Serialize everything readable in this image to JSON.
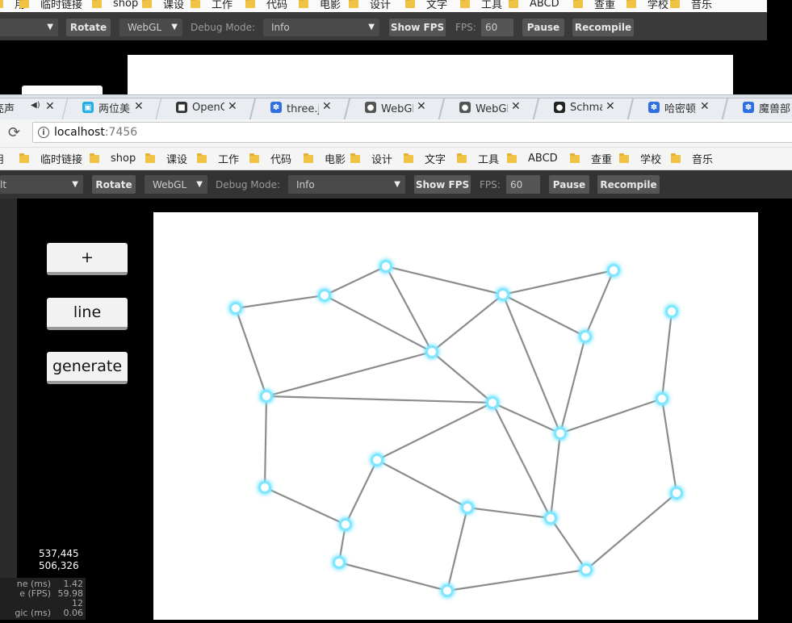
{
  "back_window": {
    "bookmarks": [
      "用",
      "临时链接",
      "shop",
      "课设",
      "工作",
      "代码",
      "电影",
      "设计",
      "文字",
      "工具",
      "ABCD",
      "查重",
      "学校",
      "音乐"
    ],
    "toolbar": {
      "select_value": "",
      "rotate": "Rotate",
      "webgl": "WebGL",
      "debug_label": "Debug Mode:",
      "debug_value": "Info",
      "show_fps": "Show FPS",
      "fps_label": "FPS:",
      "fps_value": "60",
      "pause": "Pause",
      "recompile": "Recompile"
    }
  },
  "tabs": [
    {
      "title": "亮声",
      "icon": "speaker-icon",
      "color": "#888888"
    },
    {
      "title": "两位美女翻",
      "icon": "bilibili-icon",
      "color": "#23ade5"
    },
    {
      "title": "OpenGL -",
      "icon": "book-icon",
      "color": "#333333"
    },
    {
      "title": "three.js_百",
      "icon": "baidu-paw-icon",
      "color": "#2f6fe0"
    },
    {
      "title": "WebGL中",
      "icon": "penguin-icon",
      "color": "#555555"
    },
    {
      "title": "WebGL中",
      "icon": "penguin-icon",
      "color": "#555555"
    },
    {
      "title": "Schmallts",
      "icon": "github-icon",
      "color": "#222222"
    },
    {
      "title": "哈密顿回路",
      "icon": "baidu-paw-icon",
      "color": "#2f6fe0"
    },
    {
      "title": "魔兽部落旗",
      "icon": "baidu-paw-icon",
      "color": "#2f6fe0"
    }
  ],
  "address": {
    "host": "localhost",
    "port": ":7456"
  },
  "bookmarks": [
    "用",
    "临时链接",
    "shop",
    "课设",
    "工作",
    "代码",
    "电影",
    "设计",
    "文字",
    "工具",
    "ABCD",
    "查重",
    "学校",
    "音乐"
  ],
  "toolbar": {
    "select_value": "lt",
    "rotate": "Rotate",
    "webgl": "WebGL",
    "debug_label": "Debug Mode:",
    "debug_value": "Info",
    "show_fps": "Show FPS",
    "fps_label": "FPS:",
    "fps_value": "60",
    "pause": "Pause",
    "recompile": "Recompile"
  },
  "controls": {
    "add": "+",
    "line": "line",
    "generate": "generate"
  },
  "coords": {
    "line1": "537,445",
    "line2": "506,326"
  },
  "stats": [
    {
      "key": "ne (ms)",
      "value": "1.42"
    },
    {
      "key": "e (FPS)",
      "value": "59.98"
    },
    {
      "key": "",
      "value": "12"
    },
    {
      "key": "gic (ms)",
      "value": "0.06"
    }
  ],
  "graph": {
    "node_color": "#7fe6ff",
    "edge_color": "#8c8c8c"
  }
}
